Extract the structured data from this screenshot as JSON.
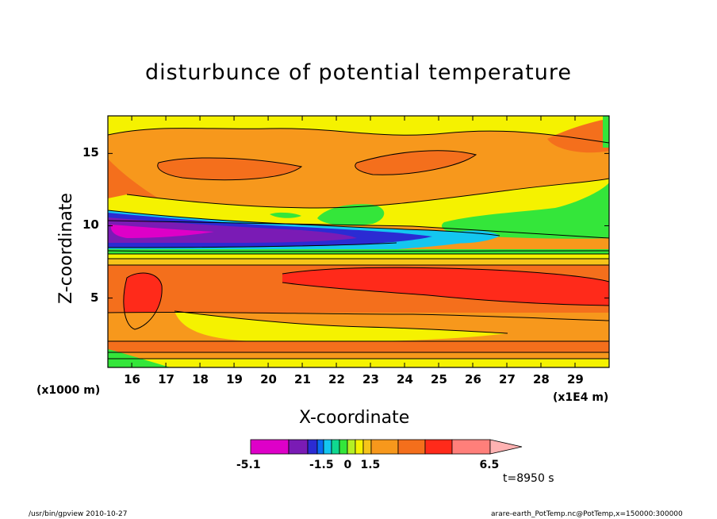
{
  "chart_data": {
    "type": "heatmap",
    "title": "disturbunce of potential temperature",
    "xlabel": "X-coordinate",
    "ylabel": "Z-coordinate",
    "x_unit": "(x1E4 m)",
    "y_unit": "(x1000 m)",
    "xlim": [
      15.3,
      30.0
    ],
    "ylim": [
      0.2,
      17.6
    ],
    "x_ticks": [
      "16",
      "17",
      "18",
      "19",
      "20",
      "21",
      "22",
      "23",
      "24",
      "25",
      "26",
      "27",
      "28",
      "29"
    ],
    "y_ticks": [
      "5",
      "10",
      "15"
    ],
    "colorbar": {
      "levels": [
        -5.1,
        -4.2,
        -3.0,
        -2.4,
        -1.5,
        -1.0,
        -0.5,
        0,
        0.5,
        1.0,
        1.5,
        2.7,
        4.2,
        5.1,
        6.5
      ],
      "colors": [
        "#de00c8",
        "#7a1bb5",
        "#2b2bd3",
        "#0a6bf2",
        "#14c6f0",
        "#10d890",
        "#34e63a",
        "#b4f024",
        "#f5f200",
        "#f6c41a",
        "#f7981c",
        "#f46f1c",
        "#ff2a1a",
        "#ff7f7a",
        "#ffb2b2"
      ],
      "labels": [
        "-5.1",
        "-1.5",
        "0",
        "1.5",
        "6.5"
      ]
    },
    "bands": [
      {
        "zmin": 0.2,
        "zmax": 1.4,
        "value": 2.7
      },
      {
        "zmin": 1.4,
        "zmax": 4.0,
        "value": 1.5
      },
      {
        "zmin": 4.0,
        "zmax": 7.8,
        "value": 2.7
      },
      {
        "zmin": 7.8,
        "zmax": 8.5,
        "value": 1.0
      },
      {
        "zmin": 8.5,
        "zmax": 9.6,
        "value": -3.0
      },
      {
        "zmin": 9.6,
        "zmax": 10.6,
        "value": -5.1
      },
      {
        "zmin": 10.6,
        "zmax": 12.5,
        "value": 0.5
      },
      {
        "zmin": 12.5,
        "zmax": 16.0,
        "value": 1.5
      },
      {
        "zmin": 16.0,
        "zmax": 17.6,
        "value": 0.5
      }
    ]
  },
  "time_label": "t=8950 s",
  "footer": {
    "left": "/usr/bin/gpview   2010-10-27",
    "right": "arare-earth_PotTemp.nc@PotTemp,x=150000:300000"
  }
}
